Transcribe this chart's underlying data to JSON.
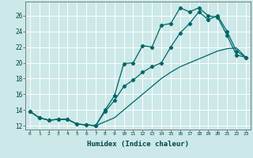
{
  "xlabel": "Humidex (Indice chaleur)",
  "bg_color": "#cce8e8",
  "grid_color": "#ffffff",
  "line_color": "#006666",
  "xlim": [
    -0.5,
    23.5
  ],
  "ylim": [
    11.5,
    27.8
  ],
  "xticks": [
    0,
    1,
    2,
    3,
    4,
    5,
    6,
    7,
    8,
    9,
    10,
    11,
    12,
    13,
    14,
    15,
    16,
    17,
    18,
    19,
    20,
    21,
    22,
    23
  ],
  "yticks": [
    12,
    14,
    16,
    18,
    20,
    22,
    24,
    26
  ],
  "line1_x": [
    0,
    1,
    2,
    3,
    4,
    5,
    6,
    7,
    8,
    9,
    10,
    11,
    12,
    13,
    14,
    15,
    16,
    17,
    18,
    19,
    20,
    21,
    22,
    23
  ],
  "line1_y": [
    13.8,
    13.0,
    12.7,
    12.8,
    12.8,
    12.2,
    12.1,
    12.0,
    14.0,
    15.8,
    19.9,
    20.0,
    22.2,
    22.0,
    24.8,
    25.0,
    27.0,
    26.5,
    27.0,
    26.0,
    25.8,
    23.5,
    21.0,
    20.7
  ],
  "line2_x": [
    0,
    1,
    2,
    3,
    4,
    5,
    6,
    7,
    8,
    9,
    10,
    11,
    12,
    13,
    14,
    15,
    16,
    17,
    18,
    19,
    20,
    21,
    22,
    23
  ],
  "line2_y": [
    13.8,
    13.0,
    12.7,
    12.8,
    12.8,
    12.2,
    12.1,
    12.0,
    13.8,
    15.2,
    17.0,
    17.8,
    18.8,
    19.5,
    20.0,
    22.0,
    23.8,
    25.0,
    26.5,
    25.5,
    26.0,
    24.0,
    21.5,
    20.7
  ],
  "line3_x": [
    0,
    1,
    2,
    3,
    4,
    5,
    6,
    7,
    8,
    9,
    10,
    11,
    12,
    13,
    14,
    15,
    16,
    17,
    18,
    19,
    20,
    21,
    22,
    23
  ],
  "line3_y": [
    13.8,
    13.0,
    12.7,
    12.8,
    12.8,
    12.2,
    12.1,
    12.0,
    12.5,
    13.0,
    14.0,
    15.0,
    16.0,
    17.0,
    18.0,
    18.8,
    19.5,
    20.0,
    20.5,
    21.0,
    21.5,
    21.8,
    21.9,
    20.7
  ]
}
